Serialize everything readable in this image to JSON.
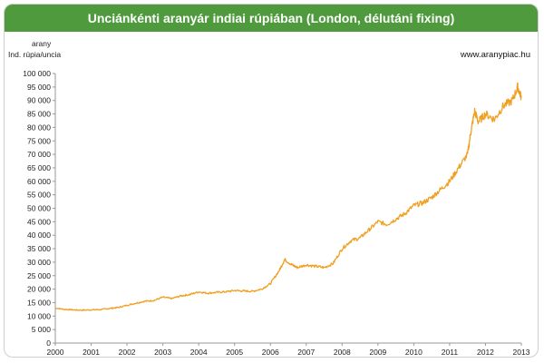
{
  "title": "Unciánkénti aranyár indiai rúpiában (London, délutáni fixing)",
  "source": "www.aranypiac.hu",
  "colors": {
    "title_bg": "#4e9a3c",
    "title_text": "#ffffff",
    "line": "#f0a020",
    "axis": "#999999"
  },
  "chart_data": {
    "type": "line",
    "title": "Unciánkénti aranyár indiai rúpiában (London, délutáni fixing)",
    "ylabel_lines": [
      "arany",
      "Ind. rúpia/uncia"
    ],
    "xlabel": "",
    "xlim": [
      2000,
      2013
    ],
    "ylim": [
      0,
      100000
    ],
    "x_ticks": [
      "2000",
      "2001",
      "2002",
      "2003",
      "2004",
      "2005",
      "2006",
      "2007",
      "2008",
      "2009",
      "2010",
      "2011",
      "2012",
      "2013"
    ],
    "y_ticks": [
      "0",
      "5 000",
      "10 000",
      "15 000",
      "20 000",
      "25 000",
      "30 000",
      "35 000",
      "40 000",
      "45 000",
      "50 000",
      "55 000",
      "60 000",
      "65 000",
      "70 000",
      "75 000",
      "80 000",
      "85 000",
      "90 000",
      "95 000",
      "100 000"
    ],
    "grid": false,
    "series": [
      {
        "x": [
          2000.0,
          2000.25,
          2000.5,
          2000.75,
          2001.0,
          2001.25,
          2001.5,
          2001.75,
          2002.0,
          2002.25,
          2002.5,
          2002.75,
          2003.0,
          2003.25,
          2003.5,
          2003.75,
          2004.0,
          2004.25,
          2004.5,
          2004.75,
          2005.0,
          2005.25,
          2005.5,
          2005.75,
          2006.0,
          2006.25,
          2006.4,
          2006.6,
          2006.75,
          2007.0,
          2007.25,
          2007.5,
          2007.75,
          2008.0,
          2008.25,
          2008.5,
          2008.75,
          2009.0,
          2009.25,
          2009.5,
          2009.75,
          2010.0,
          2010.25,
          2010.5,
          2010.75,
          2011.0,
          2011.25,
          2011.5,
          2011.6,
          2011.7,
          2011.8,
          2012.0,
          2012.25,
          2012.5,
          2012.75,
          2012.9,
          2013.0
        ],
        "y": [
          13000,
          12500,
          12300,
          12200,
          12300,
          12400,
          12800,
          13200,
          14000,
          14800,
          15500,
          15800,
          17000,
          16500,
          17500,
          18000,
          19000,
          18500,
          18800,
          19000,
          19500,
          19300,
          19200,
          20000,
          22000,
          27000,
          31000,
          29000,
          28000,
          29000,
          28500,
          28000,
          29500,
          35000,
          38000,
          39000,
          42000,
          45000,
          44000,
          46000,
          48000,
          51000,
          52000,
          54000,
          57000,
          60000,
          65000,
          70000,
          79000,
          86000,
          82000,
          85000,
          83000,
          88000,
          90000,
          95000,
          91000
        ]
      }
    ]
  }
}
